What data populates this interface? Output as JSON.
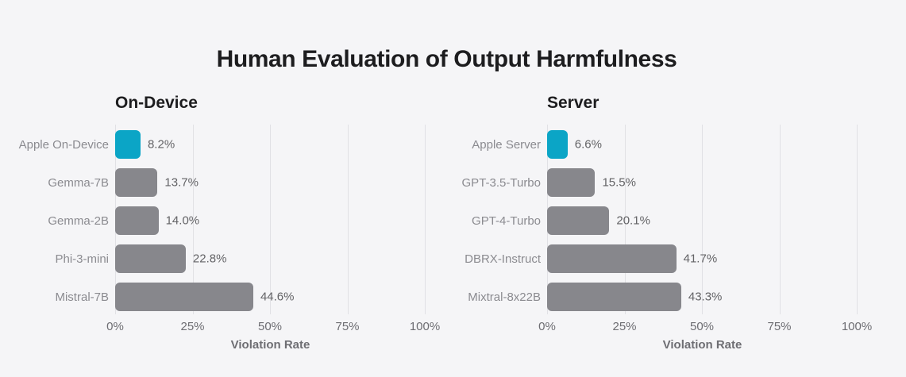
{
  "page": {
    "title": "Human Evaluation of Output Harmfulness",
    "background_color": "#f5f5f7"
  },
  "colors": {
    "highlight_bar": "#0ba5c6",
    "default_bar": "#87878c",
    "category_label_text": "#8b8b90",
    "value_label_text": "#636366",
    "heading_text": "#1d1d1f",
    "axis_text": "#6e6e73",
    "gridline": "#e1e1e5"
  },
  "chart_data": [
    {
      "type": "bar",
      "orientation": "horizontal",
      "title": "On-Device",
      "xlabel": "Violation Rate",
      "xlim": [
        0,
        100
      ],
      "grid": true,
      "legend": "none",
      "tick_values": [
        0,
        25,
        50,
        75,
        100
      ],
      "tick_labels": [
        "0%",
        "25%",
        "50%",
        "75%",
        "100%"
      ],
      "categories": [
        "Apple On-Device",
        "Gemma-7B",
        "Gemma-2B",
        "Phi-3-mini",
        "Mistral-7B"
      ],
      "values": [
        8.2,
        13.7,
        14.0,
        22.8,
        44.6
      ],
      "value_labels": [
        "8.2%",
        "13.7%",
        "14.0%",
        "22.8%",
        "44.6%"
      ],
      "highlight_index": 0
    },
    {
      "type": "bar",
      "orientation": "horizontal",
      "title": "Server",
      "xlabel": "Violation Rate",
      "xlim": [
        0,
        100
      ],
      "grid": true,
      "legend": "none",
      "tick_values": [
        0,
        25,
        50,
        75,
        100
      ],
      "tick_labels": [
        "0%",
        "25%",
        "50%",
        "75%",
        "100%"
      ],
      "categories": [
        "Apple Server",
        "GPT-3.5-Turbo",
        "GPT-4-Turbo",
        "DBRX-Instruct",
        "Mixtral-8x22B"
      ],
      "values": [
        6.6,
        15.5,
        20.1,
        41.7,
        43.3
      ],
      "value_labels": [
        "6.6%",
        "15.5%",
        "20.1%",
        "41.7%",
        "43.3%"
      ],
      "highlight_index": 0
    }
  ]
}
